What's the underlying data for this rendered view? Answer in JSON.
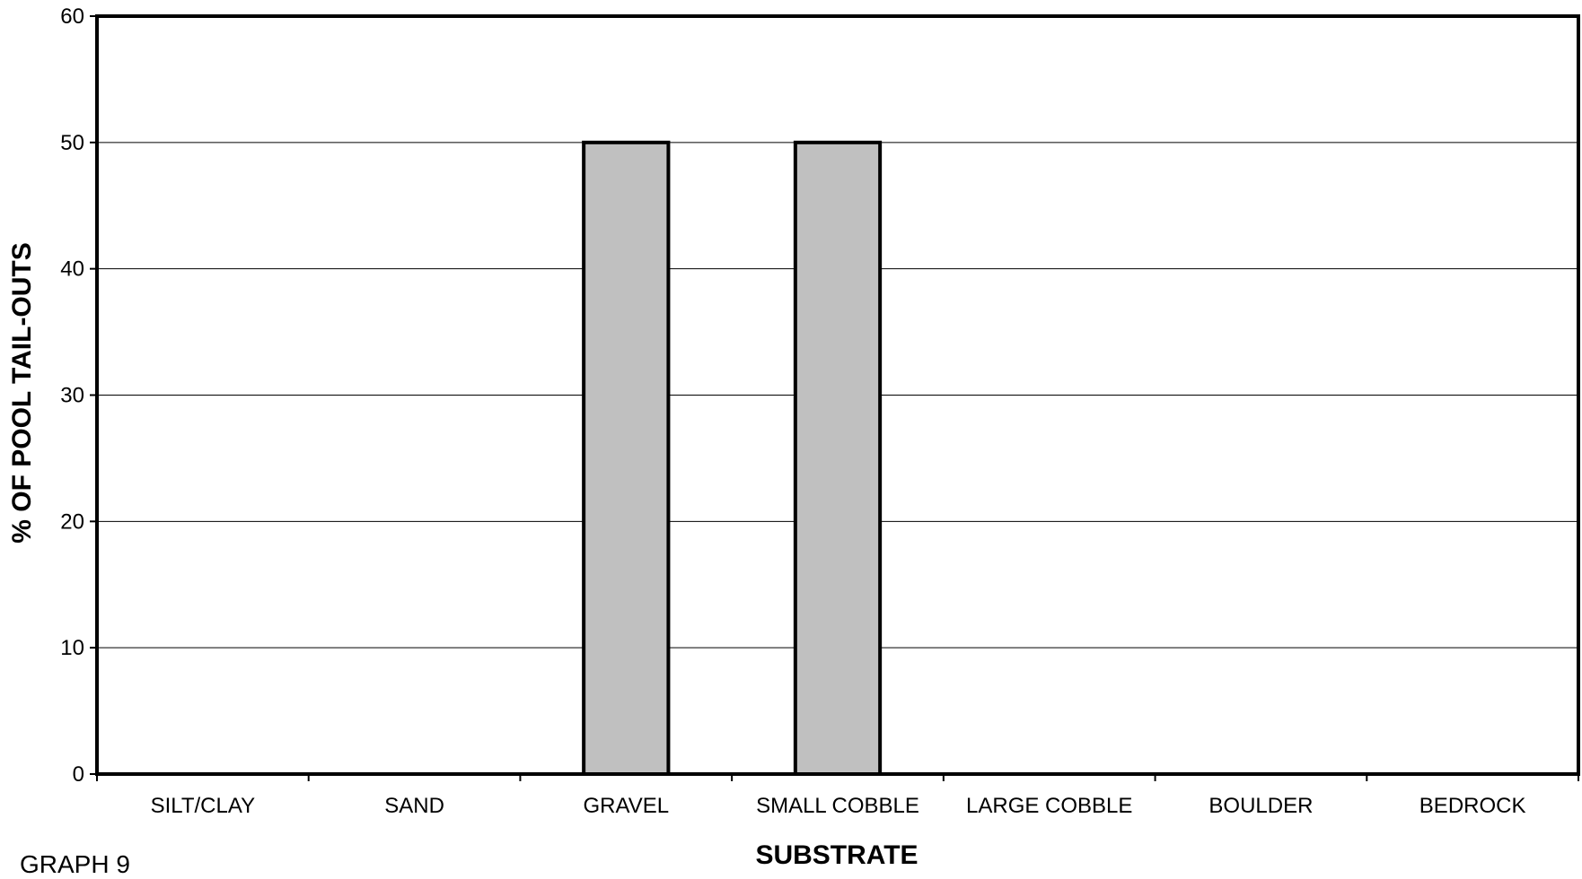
{
  "chart_data": {
    "type": "bar",
    "categories": [
      "SILT/CLAY",
      "SAND",
      "GRAVEL",
      "SMALL COBBLE",
      "LARGE COBBLE",
      "BOULDER",
      "BEDROCK"
    ],
    "values": [
      0,
      0,
      50,
      50,
      0,
      0,
      0
    ],
    "xlabel": "SUBSTRATE",
    "ylabel": "% OF POOL TAIL-OUTS",
    "ylim": [
      0,
      60
    ],
    "yticks": [
      0,
      10,
      20,
      30,
      40,
      50,
      60
    ],
    "grid": true,
    "legend": "none",
    "bar_color": "#c0c0c0",
    "bar_edge_color": "#000000"
  },
  "caption": "GRAPH 9"
}
